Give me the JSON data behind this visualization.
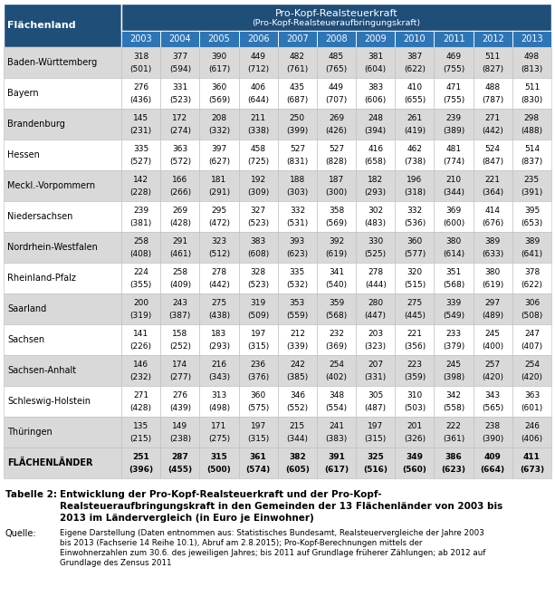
{
  "header_bg_dark": "#1F4E79",
  "header_bg_mid": "#2E75B6",
  "header_text_color": "#FFFFFF",
  "row_bg_odd": "#D9D9D9",
  "row_bg_even": "#FFFFFF",
  "last_row_bg": "#D9D9D9",
  "title_col": "Flächenland",
  "header_line1": "Pro-Kopf-Realsteuerkraft",
  "header_line2": "(Pro-Kopf-Realsteueraufbringungskraft)",
  "years": [
    "2003",
    "2004",
    "2005",
    "2006",
    "2007",
    "2008",
    "2009",
    "2010",
    "2011",
    "2012",
    "2013"
  ],
  "rows": [
    {
      "name": "Baden-Württemberg",
      "main": [
        318,
        377,
        390,
        449,
        482,
        485,
        381,
        387,
        469,
        511,
        498
      ],
      "sub": [
        501,
        594,
        617,
        712,
        761,
        765,
        604,
        622,
        755,
        827,
        813
      ],
      "bold": false
    },
    {
      "name": "Bayern",
      "main": [
        276,
        331,
        360,
        406,
        435,
        449,
        383,
        410,
        471,
        488,
        511
      ],
      "sub": [
        436,
        523,
        569,
        644,
        687,
        707,
        606,
        655,
        755,
        787,
        830
      ],
      "bold": false
    },
    {
      "name": "Brandenburg",
      "main": [
        145,
        172,
        208,
        211,
        250,
        269,
        248,
        261,
        239,
        271,
        298
      ],
      "sub": [
        231,
        274,
        332,
        338,
        399,
        426,
        394,
        419,
        389,
        442,
        488
      ],
      "bold": false
    },
    {
      "name": "Hessen",
      "main": [
        335,
        363,
        397,
        458,
        527,
        527,
        416,
        462,
        481,
        524,
        514
      ],
      "sub": [
        527,
        572,
        627,
        725,
        831,
        828,
        658,
        738,
        774,
        847,
        837
      ],
      "bold": false
    },
    {
      "name": "Meckl.-Vorpommern",
      "main": [
        142,
        166,
        181,
        192,
        188,
        187,
        182,
        196,
        210,
        221,
        235
      ],
      "sub": [
        228,
        266,
        291,
        309,
        303,
        300,
        293,
        318,
        344,
        364,
        391
      ],
      "bold": false
    },
    {
      "name": "Niedersachsen",
      "main": [
        239,
        269,
        295,
        327,
        332,
        358,
        302,
        332,
        369,
        414,
        395
      ],
      "sub": [
        381,
        428,
        472,
        523,
        531,
        569,
        483,
        536,
        600,
        676,
        653
      ],
      "bold": false
    },
    {
      "name": "Nordrhein-Westfalen",
      "main": [
        258,
        291,
        323,
        383,
        393,
        392,
        330,
        360,
        380,
        389,
        389
      ],
      "sub": [
        408,
        461,
        512,
        608,
        623,
        619,
        525,
        577,
        614,
        633,
        641
      ],
      "bold": false
    },
    {
      "name": "Rheinland-Pfalz",
      "main": [
        224,
        258,
        278,
        328,
        335,
        341,
        278,
        320,
        351,
        380,
        378
      ],
      "sub": [
        355,
        409,
        442,
        523,
        532,
        540,
        444,
        515,
        568,
        619,
        622
      ],
      "bold": false
    },
    {
      "name": "Saarland",
      "main": [
        200,
        243,
        275,
        319,
        353,
        359,
        280,
        275,
        339,
        297,
        306
      ],
      "sub": [
        319,
        387,
        438,
        509,
        559,
        568,
        447,
        445,
        549,
        489,
        508
      ],
      "bold": false
    },
    {
      "name": "Sachsen",
      "main": [
        141,
        158,
        183,
        197,
        212,
        232,
        203,
        221,
        233,
        245,
        247
      ],
      "sub": [
        226,
        252,
        293,
        315,
        339,
        369,
        323,
        356,
        379,
        400,
        407
      ],
      "bold": false
    },
    {
      "name": "Sachsen-Anhalt",
      "main": [
        146,
        174,
        216,
        236,
        242,
        254,
        207,
        223,
        245,
        257,
        254
      ],
      "sub": [
        232,
        277,
        343,
        376,
        385,
        402,
        331,
        359,
        398,
        420,
        420
      ],
      "bold": false
    },
    {
      "name": "Schleswig-Holstein",
      "main": [
        271,
        276,
        313,
        360,
        346,
        348,
        305,
        310,
        342,
        343,
        363
      ],
      "sub": [
        428,
        439,
        498,
        575,
        552,
        554,
        487,
        503,
        558,
        565,
        601
      ],
      "bold": false
    },
    {
      "name": "Thüringen",
      "main": [
        135,
        149,
        171,
        197,
        215,
        241,
        197,
        201,
        222,
        238,
        246
      ],
      "sub": [
        215,
        238,
        275,
        315,
        344,
        383,
        315,
        326,
        361,
        390,
        406
      ],
      "bold": false
    },
    {
      "name": "FLÄCHENLÄNDER",
      "main": [
        251,
        287,
        315,
        361,
        382,
        391,
        325,
        349,
        386,
        409,
        411
      ],
      "sub": [
        396,
        455,
        500,
        574,
        605,
        617,
        516,
        560,
        623,
        664,
        673
      ],
      "bold": true
    }
  ],
  "caption_label": "Tabelle 2:",
  "caption_text": "Entwicklung der Pro-Kopf-Realsteuerkraft und der Pro-Kopf-\nRealsteueraufbringungskraft in den Gemeinden der 13 Flächenländer von 2003 bis\n2013 im Ländervergleich (in Euro je Einwohner)",
  "source_label": "Quelle:",
  "source_text": "Eigene Darstellung (Daten entnommen aus: Statistisches Bundesamt, Realsteuervergleiche der Jahre 2003\nbis 2013 (Fachserie 14 Reihe 10.1), Abruf am 2.8.2015); Pro-Kopf-Berechnungen mittels der\nEinwohnerzahlen zum 30.6. des jeweiligen Jahres; bis 2011 auf Grundlage früherer Zählungen; ab 2012 auf\nGrundlage des Zensus 2011"
}
